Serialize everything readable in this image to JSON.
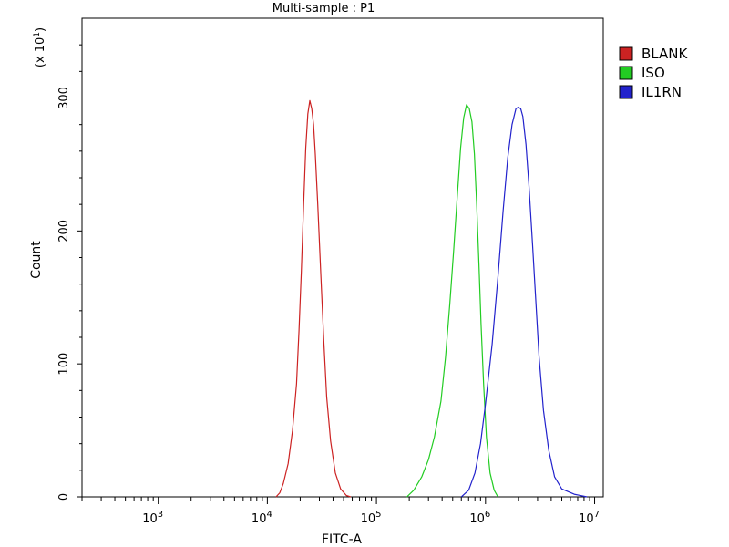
{
  "chart_data": {
    "type": "line",
    "title": "Multi-sample : P1",
    "xlabel": "FITC-A",
    "ylabel": "Count",
    "y_multiplier": {
      "base": "(x 10",
      "exp": "1",
      "close": ")"
    },
    "x_scale": "log",
    "xlim": [
      200,
      12000000
    ],
    "ylim": [
      0,
      360
    ],
    "grid": false,
    "legend_position": "top-right",
    "x_ticks": [
      {
        "base": "10",
        "exp": "3",
        "value": 1000
      },
      {
        "base": "10",
        "exp": "4",
        "value": 10000
      },
      {
        "base": "10",
        "exp": "5",
        "value": 100000
      },
      {
        "base": "10",
        "exp": "6",
        "value": 1000000
      },
      {
        "base": "10",
        "exp": "7",
        "value": 10000000
      }
    ],
    "y_ticks": [
      {
        "label": "0",
        "value": 0
      },
      {
        "label": "100",
        "value": 100
      },
      {
        "label": "200",
        "value": 200
      },
      {
        "label": "300",
        "value": 300
      }
    ],
    "series": [
      {
        "name": "BLANK",
        "color": "#cc2222",
        "points": [
          [
            12000,
            0
          ],
          [
            13000,
            3
          ],
          [
            14000,
            10
          ],
          [
            15500,
            25
          ],
          [
            17000,
            50
          ],
          [
            18500,
            85
          ],
          [
            19500,
            125
          ],
          [
            20500,
            170
          ],
          [
            21500,
            220
          ],
          [
            22500,
            262
          ],
          [
            23500,
            288
          ],
          [
            24500,
            298
          ],
          [
            25500,
            292
          ],
          [
            26500,
            280
          ],
          [
            27500,
            258
          ],
          [
            29000,
            220
          ],
          [
            31000,
            165
          ],
          [
            33000,
            115
          ],
          [
            35000,
            75
          ],
          [
            38000,
            42
          ],
          [
            42000,
            18
          ],
          [
            47000,
            6
          ],
          [
            53000,
            1
          ],
          [
            58000,
            0
          ]
        ]
      },
      {
        "name": "ISO",
        "color": "#22cc22",
        "points": [
          [
            190000,
            0
          ],
          [
            220000,
            5
          ],
          [
            260000,
            15
          ],
          [
            300000,
            28
          ],
          [
            340000,
            45
          ],
          [
            390000,
            72
          ],
          [
            430000,
            105
          ],
          [
            470000,
            145
          ],
          [
            510000,
            185
          ],
          [
            550000,
            225
          ],
          [
            590000,
            262
          ],
          [
            630000,
            285
          ],
          [
            670000,
            295
          ],
          [
            710000,
            292
          ],
          [
            750000,
            282
          ],
          [
            790000,
            258
          ],
          [
            830000,
            220
          ],
          [
            870000,
            175
          ],
          [
            910000,
            130
          ],
          [
            960000,
            85
          ],
          [
            1020000,
            45
          ],
          [
            1100000,
            18
          ],
          [
            1200000,
            5
          ],
          [
            1300000,
            0
          ]
        ]
      },
      {
        "name": "IL1RN",
        "color": "#2222cc",
        "points": [
          [
            600000,
            0
          ],
          [
            700000,
            5
          ],
          [
            800000,
            18
          ],
          [
            900000,
            40
          ],
          [
            1000000,
            70
          ],
          [
            1150000,
            115
          ],
          [
            1300000,
            165
          ],
          [
            1450000,
            215
          ],
          [
            1600000,
            255
          ],
          [
            1750000,
            280
          ],
          [
            1900000,
            292
          ],
          [
            2000000,
            293
          ],
          [
            2100000,
            292
          ],
          [
            2200000,
            286
          ],
          [
            2350000,
            265
          ],
          [
            2500000,
            235
          ],
          [
            2700000,
            190
          ],
          [
            2900000,
            145
          ],
          [
            3100000,
            105
          ],
          [
            3400000,
            65
          ],
          [
            3800000,
            35
          ],
          [
            4300000,
            15
          ],
          [
            5000000,
            6
          ],
          [
            6500000,
            2
          ],
          [
            8500000,
            0
          ]
        ]
      }
    ]
  }
}
